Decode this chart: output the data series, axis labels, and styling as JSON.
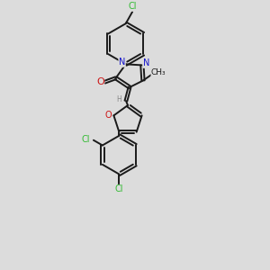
{
  "bg_color": "#dcdcdc",
  "bond_color": "#1a1a1a",
  "bond_width": 1.4,
  "dbo": 0.04,
  "atom_colors": {
    "C": "#1a1a1a",
    "N": "#1515cc",
    "O": "#cc1515",
    "Cl": "#33bb33",
    "H": "#888888"
  },
  "font_size": 7.0,
  "font_size_small": 6.0
}
